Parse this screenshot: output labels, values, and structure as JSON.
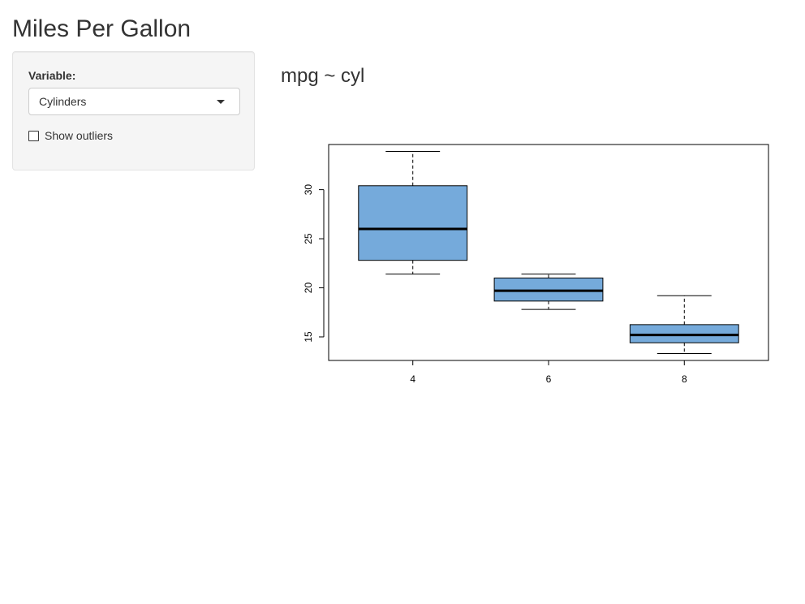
{
  "app": {
    "title": "Miles Per Gallon"
  },
  "sidebar": {
    "variable_label": "Variable:",
    "variable_selected": "Cylinders",
    "outliers_label": "Show outliers",
    "outliers_checked": false
  },
  "main": {
    "plot_title": "mpg ~ cyl"
  },
  "colors": {
    "box_fill": "#75AADB",
    "panel_bg": "#f5f5f5"
  },
  "icons": {
    "dropdown": "caret-down-icon",
    "checkbox": "checkbox-icon"
  },
  "chart_data": {
    "type": "boxplot",
    "title": "",
    "xlabel": "",
    "ylabel": "",
    "categories": [
      "4",
      "6",
      "8"
    ],
    "ylim": [
      12.6,
      34.6
    ],
    "yticks": [
      15,
      20,
      25,
      30
    ],
    "grid": false,
    "boxes": [
      {
        "category": "4",
        "min": 21.4,
        "q1": 22.8,
        "median": 26.0,
        "q3": 30.4,
        "max": 33.9
      },
      {
        "category": "6",
        "min": 17.8,
        "q1": 18.65,
        "median": 19.7,
        "q3": 21.0,
        "max": 21.4
      },
      {
        "category": "8",
        "min": 13.3,
        "q1": 14.4,
        "median": 15.2,
        "q3": 16.25,
        "max": 19.2
      }
    ]
  }
}
